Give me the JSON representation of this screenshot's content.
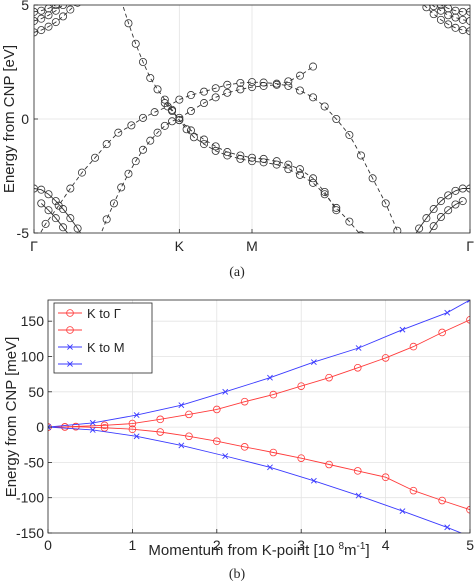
{
  "chart_data": [
    {
      "type": "line",
      "panel": "a",
      "caption": "(a)",
      "ylabel": "Energy from CNP [eV]",
      "ylim": [
        -5,
        5
      ],
      "yticks": [
        -5,
        0,
        5
      ],
      "xlim": [
        0,
        3
      ],
      "xticks": [
        {
          "v": 0,
          "label": "Γ"
        },
        {
          "v": 1,
          "label": "K"
        },
        {
          "v": 1.5,
          "label": "M"
        },
        {
          "v": 3,
          "label": "Γ"
        }
      ],
      "series": [
        {
          "style": "dashed",
          "marker": "o",
          "x": [
            0,
            0.08,
            0.17,
            0.25,
            0.33,
            0.42,
            0.5,
            0.58,
            0.67,
            0.75,
            0.83,
            0.92,
            1.0,
            1.08,
            1.17,
            1.25,
            1.33,
            1.42,
            1.5,
            1.58,
            1.67,
            1.75,
            1.83,
            1.92,
            2.0,
            2.08,
            2.17,
            2.25,
            2.33,
            2.42,
            2.5
          ],
          "y": [
            -5.5,
            -4.6,
            -3.8,
            -3.05,
            -2.35,
            -1.7,
            -1.1,
            -0.6,
            -0.28,
            0.05,
            0.3,
            0.55,
            0.85,
            1.05,
            1.2,
            1.35,
            1.5,
            1.58,
            1.62,
            1.6,
            1.55,
            1.45,
            1.25,
            0.95,
            0.55,
            0.0,
            -0.7,
            -1.6,
            -2.6,
            -3.7,
            -4.9
          ]
        },
        {
          "style": "dashed",
          "marker": "o",
          "x": [
            0.6,
            0.65,
            0.7,
            0.75,
            0.8,
            0.85,
            0.9,
            0.95,
            1.0,
            1.08,
            1.17,
            1.25,
            1.33,
            1.42,
            1.5,
            1.58,
            1.67,
            1.75,
            1.83,
            1.92,
            2.0,
            2.08
          ],
          "y": [
            5.2,
            4.2,
            3.3,
            2.5,
            1.8,
            1.3,
            0.85,
            0.4,
            -0.05,
            -0.5,
            -0.9,
            -1.2,
            -1.45,
            -1.6,
            -1.7,
            -1.75,
            -1.85,
            -2.0,
            -2.2,
            -2.6,
            -3.2,
            -4.0
          ]
        },
        {
          "style": "dashed",
          "marker": "o",
          "x": [
            0.45,
            0.5,
            0.55,
            0.6,
            0.65,
            0.7,
            0.75,
            0.8,
            0.85,
            0.9,
            0.95,
            1.0,
            1.08,
            1.17,
            1.25,
            1.33,
            1.42,
            1.5,
            1.58,
            1.67,
            1.75,
            1.83,
            1.92
          ],
          "y": [
            -5.2,
            -4.4,
            -3.7,
            -3.0,
            -2.4,
            -1.85,
            -1.35,
            -0.95,
            -0.6,
            -0.3,
            -0.1,
            0.05,
            0.35,
            0.7,
            0.95,
            1.15,
            1.3,
            1.4,
            1.45,
            1.5,
            1.65,
            1.9,
            2.3
          ]
        },
        {
          "style": "dashed",
          "marker": "o",
          "x": [
            0.9,
            0.95,
            1.0,
            1.05,
            1.1,
            1.17,
            1.25,
            1.33,
            1.42,
            1.5,
            1.58,
            1.67,
            1.75,
            1.83,
            1.92,
            2.0,
            2.08,
            2.17,
            2.25,
            2.33
          ],
          "y": [
            0.7,
            0.35,
            -0.05,
            -0.45,
            -0.8,
            -1.1,
            -1.4,
            -1.6,
            -1.75,
            -1.85,
            -1.9,
            -2.0,
            -2.2,
            -2.45,
            -2.8,
            -3.3,
            -3.9,
            -4.5,
            -5.1,
            -5.6
          ]
        },
        {
          "style": "dashed",
          "marker": "o",
          "x": [
            0,
            0.05,
            0.1,
            0.15,
            0.2
          ],
          "y": [
            4.7,
            4.75,
            4.85,
            5.0,
            5.2
          ]
        },
        {
          "style": "dashed",
          "marker": "o",
          "x": [
            0,
            0.05,
            0.1,
            0.15,
            0.2,
            0.25
          ],
          "y": [
            4.3,
            4.4,
            4.55,
            4.75,
            5.0,
            5.3
          ]
        },
        {
          "style": "dashed",
          "marker": "o",
          "x": [
            0,
            0.05,
            0.1,
            0.15,
            0.2,
            0.25,
            0.3
          ],
          "y": [
            3.8,
            3.9,
            4.05,
            4.25,
            4.5,
            4.8,
            5.1
          ]
        },
        {
          "style": "dashed",
          "marker": "o",
          "x": [
            2.65,
            2.7,
            2.75,
            2.8,
            2.85,
            2.9,
            2.95,
            3.0
          ],
          "y": [
            5.2,
            4.9,
            4.6,
            4.35,
            4.15,
            4.0,
            3.9,
            3.85
          ]
        },
        {
          "style": "dashed",
          "marker": "o",
          "x": [
            2.7,
            2.75,
            2.8,
            2.85,
            2.9,
            2.95,
            3.0
          ],
          "y": [
            5.2,
            4.95,
            4.75,
            4.55,
            4.45,
            4.35,
            4.3
          ]
        },
        {
          "style": "dashed",
          "marker": "o",
          "x": [
            2.75,
            2.8,
            2.85,
            2.9,
            2.95,
            3.0
          ],
          "y": [
            5.2,
            5.0,
            4.85,
            4.75,
            4.7,
            4.7
          ]
        },
        {
          "style": "solid",
          "marker": "o",
          "x": [
            0,
            0.05,
            0.1,
            0.15,
            0.2,
            0.25,
            0.3,
            0.35
          ],
          "y": [
            -3.05,
            -3.1,
            -3.3,
            -3.6,
            -3.95,
            -4.35,
            -4.8,
            -5.3
          ]
        },
        {
          "style": "solid",
          "marker": "o",
          "x": [
            0.05,
            0.1,
            0.15,
            0.2,
            0.25,
            0.3
          ],
          "y": [
            -3.7,
            -4.0,
            -4.35,
            -4.75,
            -5.15,
            -5.6
          ]
        },
        {
          "style": "solid",
          "marker": "o",
          "x": [
            2.6,
            2.65,
            2.7,
            2.75,
            2.8,
            2.85,
            2.9,
            2.95,
            3.0
          ],
          "y": [
            -5.3,
            -4.8,
            -4.35,
            -3.95,
            -3.6,
            -3.35,
            -3.15,
            -3.05,
            -3.05
          ]
        },
        {
          "style": "solid",
          "marker": "o",
          "x": [
            2.7,
            2.75,
            2.8,
            2.85,
            2.9,
            2.95
          ],
          "y": [
            -5.2,
            -4.7,
            -4.3,
            -4.0,
            -3.75,
            -3.6
          ]
        }
      ]
    },
    {
      "type": "line",
      "panel": "b",
      "caption": "(b)",
      "xlabel": "Momentum from K-point [10 $^8$m$^{-1}$]",
      "ylabel": "Energy from CNP [meV]",
      "xlim": [
        0,
        5
      ],
      "ylim": [
        -150,
        180
      ],
      "xticks": [
        0,
        1,
        2,
        3,
        4,
        5
      ],
      "yticks": [
        -150,
        -100,
        -50,
        0,
        50,
        100,
        150
      ],
      "legend_position": "top-left",
      "series": [
        {
          "name": "K to Γ",
          "color": "#ff3b3b",
          "marker": "o",
          "x": [
            0,
            0.2,
            0.33,
            0.67,
            1.0,
            1.33,
            1.67,
            2.0,
            2.33,
            2.67,
            3.0,
            3.33,
            3.67,
            4.0,
            4.33,
            4.67,
            5.0
          ],
          "y": [
            0,
            0.3,
            0.8,
            2.5,
            5,
            11,
            18,
            25,
            36,
            46,
            58,
            70,
            84,
            98,
            114,
            134,
            152
          ]
        },
        {
          "name": "",
          "color": "#ff3b3b",
          "marker": "o",
          "x": [
            0,
            0.2,
            0.33,
            0.67,
            1.0,
            1.33,
            1.67,
            2.0,
            2.33,
            2.67,
            3.0,
            3.33,
            3.67,
            4.0,
            4.33,
            4.67,
            5.0
          ],
          "y": [
            0,
            0.2,
            0.5,
            -1,
            -3,
            -7,
            -13,
            -20,
            -28,
            -36,
            -44,
            -53,
            -62,
            -71,
            -90,
            -104,
            -117
          ]
        },
        {
          "name": "K to M",
          "color": "#3b3bff",
          "marker": "x",
          "x": [
            0,
            0.53,
            1.05,
            1.58,
            2.1,
            2.63,
            3.15,
            3.68,
            4.2,
            4.73,
            5.0
          ],
          "y": [
            0,
            6,
            17,
            31,
            50,
            70,
            92,
            112,
            138,
            162,
            180
          ]
        },
        {
          "name": "",
          "color": "#3b3bff",
          "marker": "x",
          "x": [
            0,
            0.53,
            1.05,
            1.58,
            2.1,
            2.63,
            3.15,
            3.68,
            4.2,
            4.73,
            5.0
          ],
          "y": [
            0,
            -4,
            -13,
            -26,
            -41,
            -57,
            -76,
            -97,
            -119,
            -142,
            -155
          ]
        }
      ]
    }
  ]
}
